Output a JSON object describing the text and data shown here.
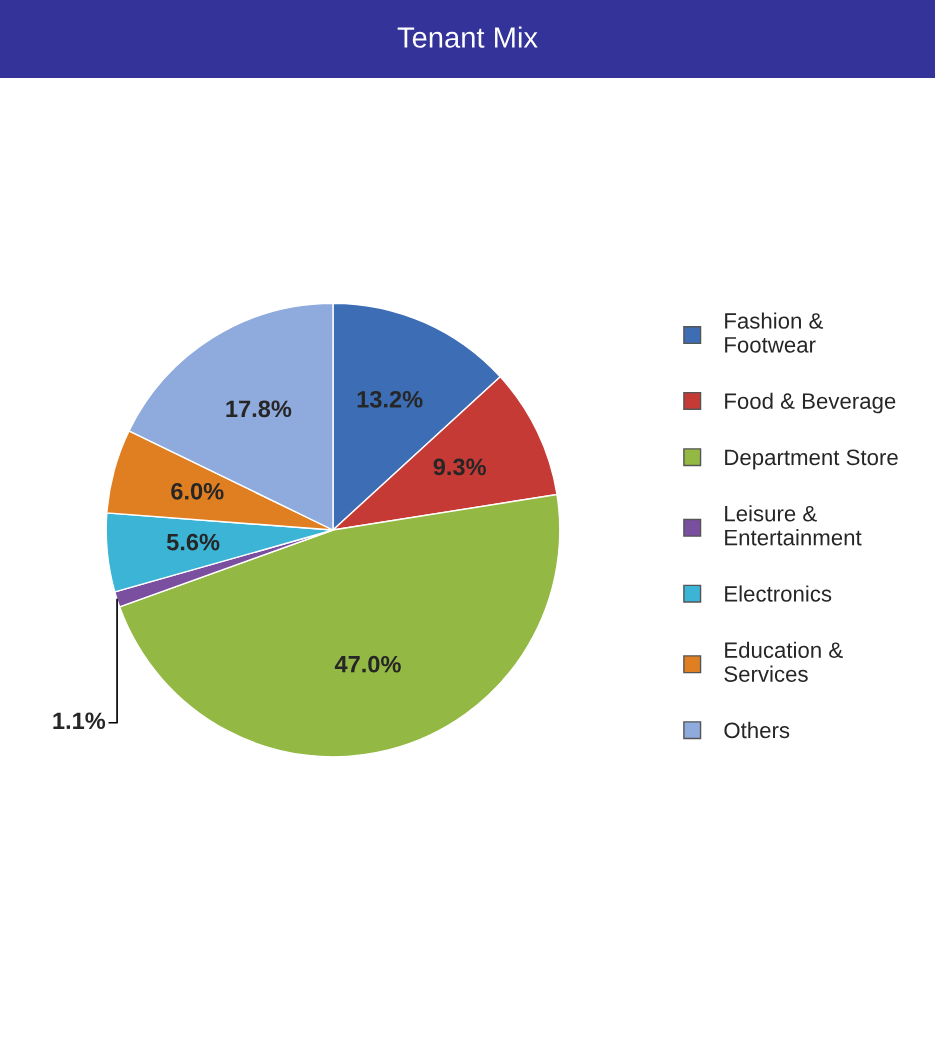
{
  "chart_data": {
    "type": "pie",
    "title": "Tenant Mix",
    "categories": [
      "Fashion & Footwear",
      "Food & Beverage",
      "Department Store",
      "Leisure & Entertainment",
      "Electronics",
      "Education & Services",
      "Others"
    ],
    "values": [
      13.2,
      9.3,
      47.0,
      1.1,
      5.6,
      6.0,
      17.8
    ],
    "colors": [
      "#3d6eb5",
      "#c63a36",
      "#93b944",
      "#7b4fa0",
      "#3bb4d6",
      "#e07f22",
      "#8faadc"
    ],
    "value_labels": [
      "13.2%",
      "9.3%",
      "47.0%",
      "1.1%",
      "5.6%",
      "6.0%",
      "17.8%"
    ],
    "legend": "right"
  }
}
